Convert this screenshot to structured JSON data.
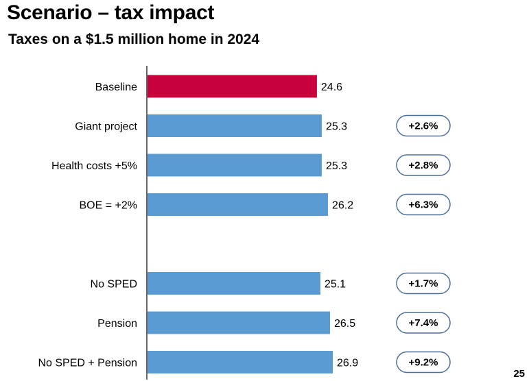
{
  "slide": {
    "title": "Scenario – tax impact",
    "subtitle": "Taxes on a $1.5 million home in 2024",
    "page_number": "25"
  },
  "colors": {
    "baseline_bar": "#C8003C",
    "scenario_bar": "#5B9BD3",
    "axis": "#333333",
    "badge_border": "#4A6F9B"
  },
  "chart_data": {
    "type": "bar",
    "orientation": "horizontal",
    "title": "Taxes on a $1.5 million home in 2024",
    "categories": [
      "Baseline",
      "Giant project",
      "Health costs +5%",
      "BOE = +2%",
      "No SPED",
      "Pension",
      "No SPED + Pension"
    ],
    "values": [
      24.6,
      25.3,
      25.3,
      26.2,
      25.1,
      26.5,
      26.9
    ],
    "value_labels": [
      "24.6",
      "25.3",
      "25.3",
      "26.2",
      "25.1",
      "26.5",
      "26.9"
    ],
    "change_labels": [
      "",
      "+2.6%",
      "+2.8%",
      "+6.3%",
      "+1.7%",
      "+7.4%",
      "+9.2%"
    ],
    "groups": [
      [
        0,
        1,
        2,
        3
      ],
      [
        4,
        5,
        6
      ]
    ],
    "xlim": [
      0,
      26.9
    ],
    "grid": false,
    "legend": "none"
  }
}
